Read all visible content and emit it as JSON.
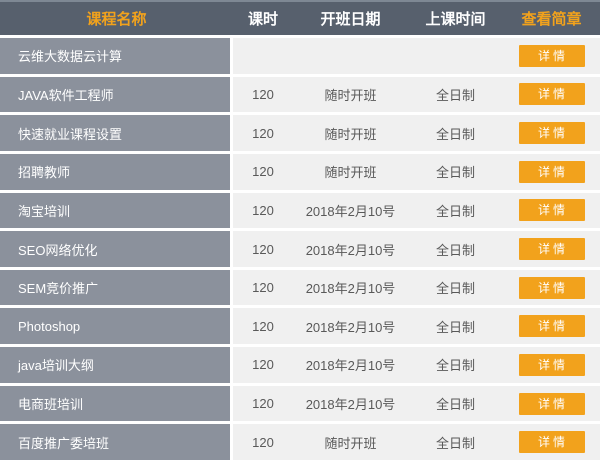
{
  "colors": {
    "accent_orange": "#f2a21c",
    "header_background": "#57606d",
    "name_column_background": "#8b919c",
    "row_background": "#f0f0f0",
    "top_strip": "#7e8894"
  },
  "table": {
    "headers": [
      {
        "label": "课程名称"
      },
      {
        "label": "课时"
      },
      {
        "label": "开班日期"
      },
      {
        "label": "上课时间"
      },
      {
        "label": "查看简章"
      }
    ],
    "rows": [
      {
        "name": "云维大数据云计算",
        "hours": "",
        "date": "",
        "time": "",
        "action": "详情"
      },
      {
        "name": "JAVA软件工程师",
        "hours": "120",
        "date": "随时开班",
        "time": "全日制",
        "action": "详情"
      },
      {
        "name": "快速就业课程设置",
        "hours": "120",
        "date": "随时开班",
        "time": "全日制",
        "action": "详情"
      },
      {
        "name": "招聘教师",
        "hours": "120",
        "date": "随时开班",
        "time": "全日制",
        "action": "详情"
      },
      {
        "name": "淘宝培训",
        "hours": "120",
        "date": "2018年2月10号",
        "time": "全日制",
        "action": "详情"
      },
      {
        "name": "SEO网络优化",
        "hours": "120",
        "date": "2018年2月10号",
        "time": "全日制",
        "action": "详情"
      },
      {
        "name": "SEM竞价推广",
        "hours": "120",
        "date": "2018年2月10号",
        "time": "全日制",
        "action": "详情"
      },
      {
        "name": "Photoshop",
        "hours": "120",
        "date": "2018年2月10号",
        "time": "全日制",
        "action": "详情"
      },
      {
        "name": "java培训大纲",
        "hours": "120",
        "date": "2018年2月10号",
        "time": "全日制",
        "action": "详情"
      },
      {
        "name": "电商班培训",
        "hours": "120",
        "date": "2018年2月10号",
        "time": "全日制",
        "action": "详情"
      },
      {
        "name": "百度推广委培班",
        "hours": "120",
        "date": "随时开班",
        "time": "全日制",
        "action": "详情"
      }
    ]
  }
}
